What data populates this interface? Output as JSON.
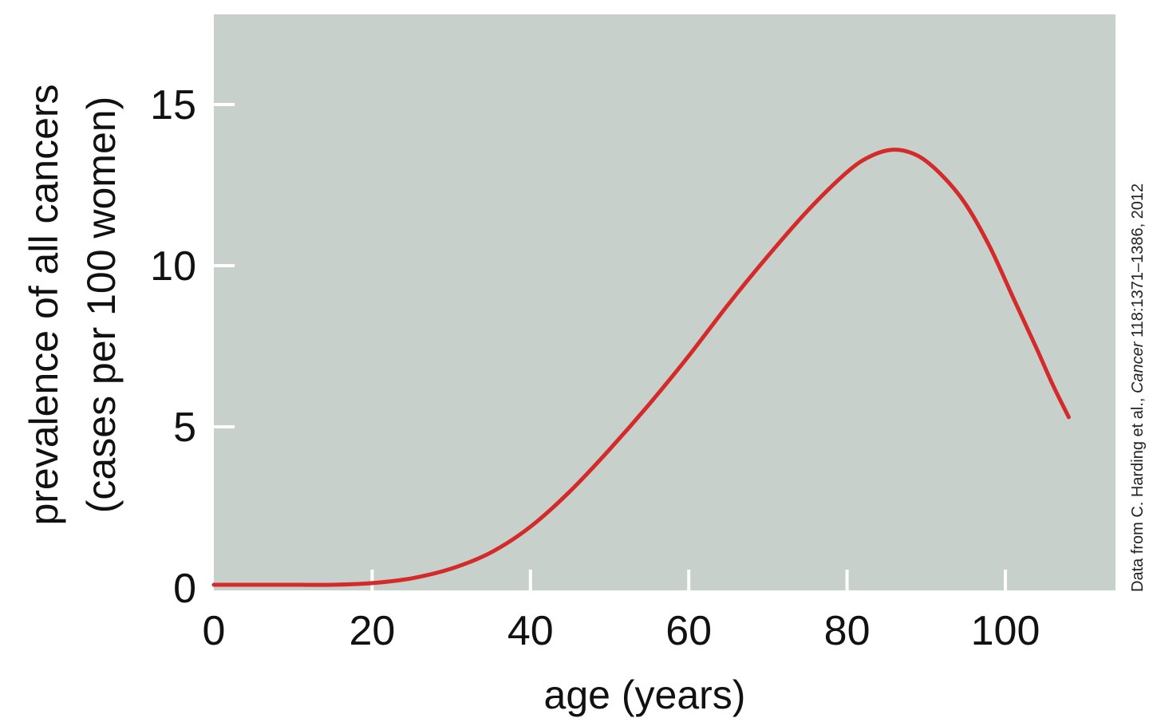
{
  "chart_data": {
    "type": "line",
    "title": "",
    "xlabel": "age (years)",
    "ylabel_line1": "prevalence of all cancers",
    "ylabel_line2": "(cases per 100 women)",
    "xlim": [
      0,
      114
    ],
    "ylim": [
      0,
      17.8
    ],
    "x_ticks": [
      0,
      20,
      40,
      60,
      80,
      100
    ],
    "y_ticks": [
      0,
      5,
      10,
      15
    ],
    "grid": false,
    "series": [
      {
        "points": [
          [
            0,
            0.1
          ],
          [
            5,
            0.1
          ],
          [
            10,
            0.1
          ],
          [
            15,
            0.1
          ],
          [
            20,
            0.15
          ],
          [
            25,
            0.3
          ],
          [
            30,
            0.6
          ],
          [
            35,
            1.1
          ],
          [
            40,
            1.9
          ],
          [
            45,
            3.0
          ],
          [
            50,
            4.3
          ],
          [
            55,
            5.7
          ],
          [
            60,
            7.2
          ],
          [
            65,
            8.8
          ],
          [
            70,
            10.3
          ],
          [
            75,
            11.7
          ],
          [
            80,
            12.9
          ],
          [
            83,
            13.4
          ],
          [
            86,
            13.6
          ],
          [
            89,
            13.4
          ],
          [
            92,
            12.8
          ],
          [
            95,
            11.9
          ],
          [
            98,
            10.6
          ],
          [
            101,
            9.0
          ],
          [
            104,
            7.4
          ],
          [
            106,
            6.3
          ],
          [
            108,
            5.3
          ]
        ]
      }
    ],
    "credit": {
      "prefix": "Data from C. Harding et al., ",
      "journal": "Cancer",
      "suffix": " 118:1371–1386, 2012"
    }
  },
  "colors": {
    "plot_background": "#c8d0cc",
    "line": "#d42a2a",
    "tick_mark": "#ffffff",
    "text": "#111111"
  }
}
